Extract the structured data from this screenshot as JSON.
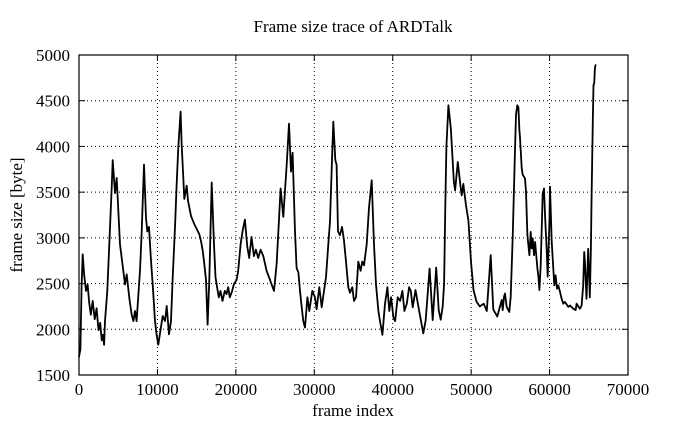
{
  "chart_data": {
    "type": "line",
    "title": "Frame size trace of ARDTalk",
    "xlabel": "frame index",
    "ylabel": "frame size [byte]",
    "xlim": [
      0,
      70000
    ],
    "ylim": [
      1500,
      5000
    ],
    "xticks": [
      0,
      10000,
      20000,
      30000,
      40000,
      50000,
      60000,
      70000
    ],
    "yticks": [
      1500,
      2000,
      2500,
      3000,
      3500,
      4000,
      4500,
      5000
    ],
    "grid": "dotted",
    "legend": "none",
    "line_color": "#000000",
    "grid_color": "#000000",
    "background": "#ffffff",
    "series": [
      {
        "name": "frame size trace",
        "points": [
          [
            0,
            1700
          ],
          [
            180,
            1780
          ],
          [
            330,
            2480
          ],
          [
            470,
            2820
          ],
          [
            650,
            2600
          ],
          [
            890,
            2420
          ],
          [
            1100,
            2490
          ],
          [
            1300,
            2290
          ],
          [
            1500,
            2160
          ],
          [
            1750,
            2310
          ],
          [
            2000,
            2110
          ],
          [
            2250,
            2230
          ],
          [
            2480,
            1990
          ],
          [
            2700,
            2070
          ],
          [
            2900,
            1880
          ],
          [
            3050,
            1940
          ],
          [
            3200,
            1830
          ],
          [
            3315,
            2090
          ],
          [
            3610,
            2420
          ],
          [
            3865,
            2930
          ],
          [
            4170,
            3550
          ],
          [
            4295,
            3850
          ],
          [
            4590,
            3490
          ],
          [
            4805,
            3655
          ],
          [
            5225,
            2930
          ],
          [
            5650,
            2640
          ],
          [
            5870,
            2490
          ],
          [
            6080,
            2600
          ],
          [
            6420,
            2335
          ],
          [
            6720,
            2160
          ],
          [
            6930,
            2090
          ],
          [
            7140,
            2200
          ],
          [
            7350,
            2090
          ],
          [
            7780,
            2640
          ],
          [
            7990,
            3070
          ],
          [
            8290,
            3800
          ],
          [
            8540,
            3220
          ],
          [
            8710,
            3070
          ],
          [
            8925,
            3120
          ],
          [
            9180,
            2750
          ],
          [
            9395,
            2490
          ],
          [
            9690,
            2090
          ],
          [
            9900,
            1940
          ],
          [
            10110,
            1830
          ],
          [
            10400,
            2000
          ],
          [
            10670,
            2145
          ],
          [
            10965,
            2090
          ],
          [
            11180,
            2255
          ],
          [
            11475,
            1945
          ],
          [
            11730,
            2090
          ],
          [
            11940,
            2540
          ],
          [
            12240,
            3115
          ],
          [
            12450,
            3570
          ],
          [
            12665,
            3990
          ],
          [
            12960,
            4380
          ],
          [
            13090,
            4010
          ],
          [
            13300,
            3660
          ],
          [
            13430,
            3425
          ],
          [
            13730,
            3570
          ],
          [
            13900,
            3405
          ],
          [
            14280,
            3240
          ],
          [
            14700,
            3150
          ],
          [
            15130,
            3075
          ],
          [
            15340,
            3040
          ],
          [
            15555,
            2965
          ],
          [
            15770,
            2860
          ],
          [
            15980,
            2715
          ],
          [
            16195,
            2540
          ],
          [
            16400,
            2050
          ],
          [
            16620,
            2540
          ],
          [
            16920,
            3605
          ],
          [
            17210,
            2930
          ],
          [
            17400,
            2570
          ],
          [
            17610,
            2460
          ],
          [
            17830,
            2350
          ],
          [
            18040,
            2420
          ],
          [
            18300,
            2310
          ],
          [
            18590,
            2420
          ],
          [
            18810,
            2385
          ],
          [
            19020,
            2460
          ],
          [
            19230,
            2350
          ],
          [
            19530,
            2420
          ],
          [
            19740,
            2490
          ],
          [
            20090,
            2540
          ],
          [
            20300,
            2640
          ],
          [
            20600,
            2930
          ],
          [
            20850,
            3070
          ],
          [
            21150,
            3200
          ],
          [
            21450,
            2910
          ],
          [
            21700,
            2780
          ],
          [
            22000,
            3010
          ],
          [
            22300,
            2800
          ],
          [
            22550,
            2870
          ],
          [
            22850,
            2780
          ],
          [
            23150,
            2870
          ],
          [
            23500,
            2800
          ],
          [
            23920,
            2640
          ],
          [
            24220,
            2570
          ],
          [
            24350,
            2540
          ],
          [
            24690,
            2460
          ],
          [
            24860,
            2420
          ],
          [
            25200,
            2710
          ],
          [
            25500,
            3200
          ],
          [
            25710,
            3540
          ],
          [
            26050,
            3230
          ],
          [
            26480,
            3800
          ],
          [
            26780,
            4250
          ],
          [
            27030,
            3725
          ],
          [
            27240,
            3930
          ],
          [
            27540,
            3070
          ],
          [
            27750,
            2670
          ],
          [
            27970,
            2620
          ],
          [
            28180,
            2420
          ],
          [
            28390,
            2240
          ],
          [
            28600,
            2090
          ],
          [
            28820,
            2020
          ],
          [
            29120,
            2350
          ],
          [
            29370,
            2200
          ],
          [
            29750,
            2420
          ],
          [
            30090,
            2350
          ],
          [
            30300,
            2220
          ],
          [
            30640,
            2460
          ],
          [
            30940,
            2240
          ],
          [
            31240,
            2420
          ],
          [
            31490,
            2570
          ],
          [
            31790,
            2930
          ],
          [
            32000,
            3180
          ],
          [
            32210,
            3725
          ],
          [
            32420,
            4270
          ],
          [
            32680,
            3850
          ],
          [
            32850,
            3800
          ],
          [
            33020,
            3070
          ],
          [
            33270,
            3030
          ],
          [
            33530,
            3120
          ],
          [
            33780,
            2980
          ],
          [
            34040,
            2740
          ],
          [
            34340,
            2460
          ],
          [
            34550,
            2400
          ],
          [
            34850,
            2460
          ],
          [
            35060,
            2310
          ],
          [
            35320,
            2350
          ],
          [
            35610,
            2740
          ],
          [
            35910,
            2640
          ],
          [
            36120,
            2740
          ],
          [
            36340,
            2700
          ],
          [
            36680,
            2930
          ],
          [
            36980,
            3330
          ],
          [
            37320,
            3630
          ],
          [
            37610,
            2930
          ],
          [
            37870,
            2490
          ],
          [
            38170,
            2200
          ],
          [
            38380,
            2090
          ],
          [
            38680,
            1940
          ],
          [
            39020,
            2280
          ],
          [
            39320,
            2460
          ],
          [
            39570,
            2200
          ],
          [
            39790,
            2350
          ],
          [
            40090,
            2130
          ],
          [
            40300,
            2090
          ],
          [
            40640,
            2350
          ],
          [
            40940,
            2310
          ],
          [
            41240,
            2420
          ],
          [
            41490,
            2200
          ],
          [
            41790,
            2280
          ],
          [
            42090,
            2460
          ],
          [
            42300,
            2420
          ],
          [
            42550,
            2240
          ],
          [
            42900,
            2430
          ],
          [
            43350,
            2210
          ],
          [
            43900,
            1955
          ],
          [
            44200,
            2100
          ],
          [
            44700,
            2665
          ],
          [
            45100,
            2100
          ],
          [
            45550,
            2675
          ],
          [
            45860,
            2210
          ],
          [
            46115,
            2105
          ],
          [
            46370,
            2250
          ],
          [
            46550,
            2500
          ],
          [
            46700,
            3340
          ],
          [
            46850,
            3995
          ],
          [
            47100,
            4450
          ],
          [
            47400,
            4200
          ],
          [
            47800,
            3610
          ],
          [
            47950,
            3520
          ],
          [
            48300,
            3830
          ],
          [
            48650,
            3555
          ],
          [
            48800,
            3465
          ],
          [
            49000,
            3590
          ],
          [
            49350,
            3355
          ],
          [
            49650,
            3190
          ],
          [
            50000,
            2725
          ],
          [
            50300,
            2430
          ],
          [
            50700,
            2300
          ],
          [
            51100,
            2250
          ],
          [
            51600,
            2280
          ],
          [
            52000,
            2200
          ],
          [
            52490,
            2810
          ],
          [
            52830,
            2215
          ],
          [
            53330,
            2140
          ],
          [
            53680,
            2250
          ],
          [
            53890,
            2320
          ],
          [
            54020,
            2210
          ],
          [
            54190,
            2355
          ],
          [
            54320,
            2390
          ],
          [
            54530,
            2245
          ],
          [
            54870,
            2190
          ],
          [
            55040,
            2355
          ],
          [
            55300,
            3010
          ],
          [
            55590,
            3960
          ],
          [
            55720,
            4345
          ],
          [
            55890,
            4450
          ],
          [
            56020,
            4430
          ],
          [
            56150,
            4175
          ],
          [
            56230,
            4100
          ],
          [
            56450,
            3765
          ],
          [
            56570,
            3690
          ],
          [
            56870,
            3650
          ],
          [
            57000,
            3505
          ],
          [
            57170,
            3030
          ],
          [
            57300,
            2920
          ],
          [
            57430,
            2810
          ],
          [
            57600,
            3065
          ],
          [
            57720,
            2885
          ],
          [
            57850,
            2995
          ],
          [
            58020,
            2810
          ],
          [
            58150,
            2955
          ],
          [
            58445,
            2665
          ],
          [
            58570,
            2575
          ],
          [
            58700,
            2430
          ],
          [
            58870,
            2700
          ],
          [
            59125,
            3485
          ],
          [
            59295,
            3540
          ],
          [
            59425,
            3230
          ],
          [
            59640,
            2865
          ],
          [
            59765,
            2575
          ],
          [
            59975,
            3160
          ],
          [
            60050,
            3560
          ],
          [
            60270,
            2960
          ],
          [
            60475,
            2665
          ],
          [
            60605,
            2480
          ],
          [
            60775,
            2590
          ],
          [
            60945,
            2445
          ],
          [
            61115,
            2480
          ],
          [
            61325,
            2410
          ],
          [
            61540,
            2335
          ],
          [
            61750,
            2280
          ],
          [
            61960,
            2300
          ],
          [
            62385,
            2245
          ],
          [
            62600,
            2260
          ],
          [
            63020,
            2225
          ],
          [
            63320,
            2210
          ],
          [
            63450,
            2280
          ],
          [
            63870,
            2225
          ],
          [
            64080,
            2260
          ],
          [
            64290,
            2480
          ],
          [
            64420,
            2845
          ],
          [
            64500,
            2740
          ],
          [
            64710,
            2335
          ],
          [
            64925,
            2880
          ],
          [
            65135,
            2350
          ],
          [
            65265,
            2880
          ],
          [
            65350,
            3390
          ],
          [
            65435,
            3865
          ],
          [
            65520,
            4340
          ],
          [
            65605,
            4670
          ],
          [
            65690,
            4690
          ],
          [
            65775,
            4850
          ],
          [
            65860,
            4890
          ]
        ]
      }
    ]
  }
}
